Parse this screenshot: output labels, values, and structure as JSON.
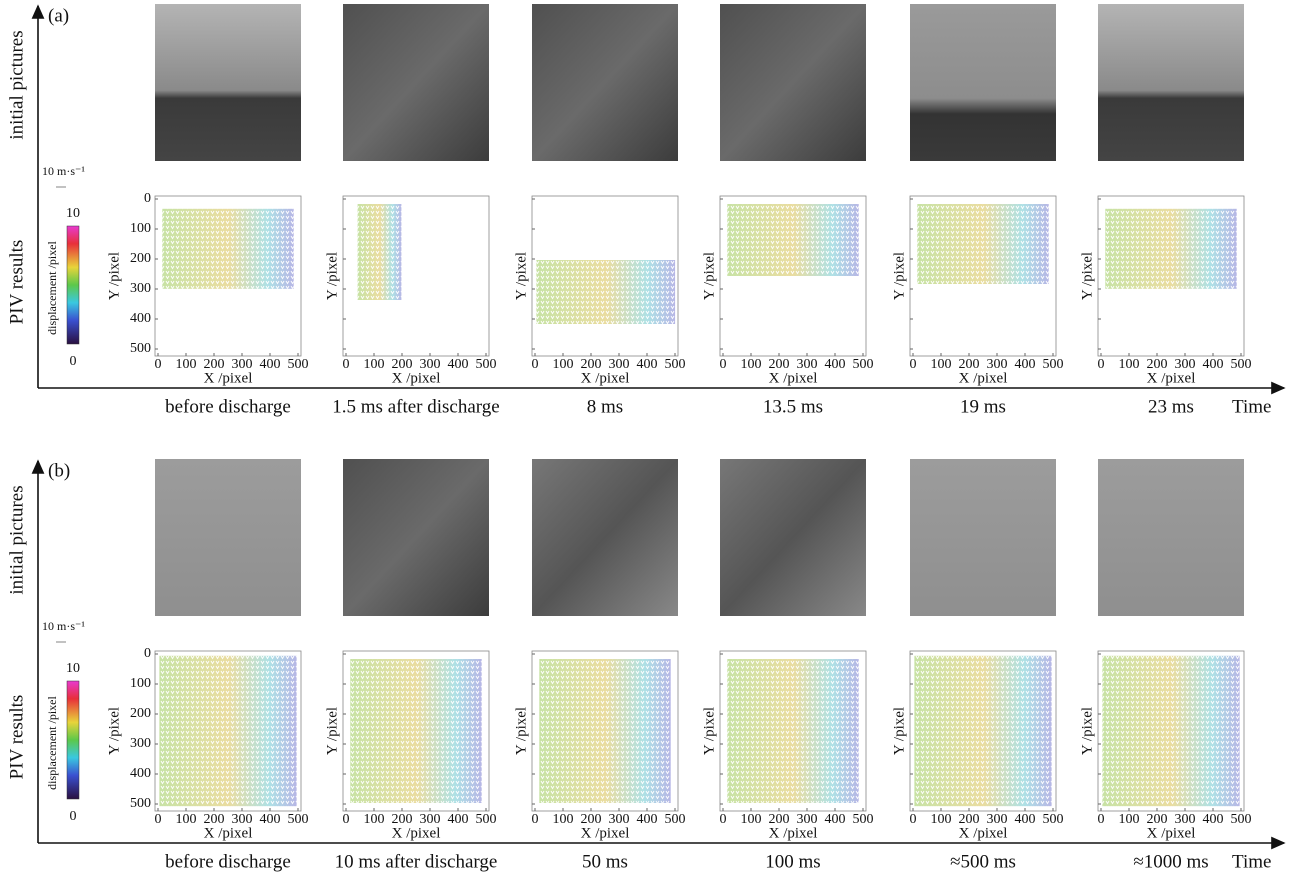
{
  "panels": [
    {
      "label": "(a)",
      "row_labels": [
        "initial pictures",
        "PIV results"
      ],
      "scale_label": "10 m·s⁻¹",
      "colorbar": {
        "title": "displacement /pixel",
        "max": 10,
        "min": 0
      },
      "x_axis_label": "X /pixel",
      "y_axis_label": "Y /pixel",
      "ticks": [
        0,
        100,
        200,
        300,
        400,
        500
      ],
      "times": [
        "before discharge",
        "1.5 ms after discharge",
        "8 ms",
        "13.5 ms",
        "19 ms",
        "23 ms"
      ],
      "time_axis_label": "Time"
    },
    {
      "label": "(b)",
      "row_labels": [
        "initial pictures",
        "PIV results"
      ],
      "scale_label": "10 m·s⁻¹",
      "colorbar": {
        "title": "displacement /pixel",
        "max": 10,
        "min": 0
      },
      "x_axis_label": "X /pixel",
      "y_axis_label": "Y /pixel",
      "ticks": [
        0,
        100,
        200,
        300,
        400,
        500
      ],
      "times": [
        "before discharge",
        "10 ms after discharge",
        "50 ms",
        "100 ms",
        "≈500 ms",
        "≈1000 ms"
      ],
      "time_axis_label": "Time"
    }
  ]
}
